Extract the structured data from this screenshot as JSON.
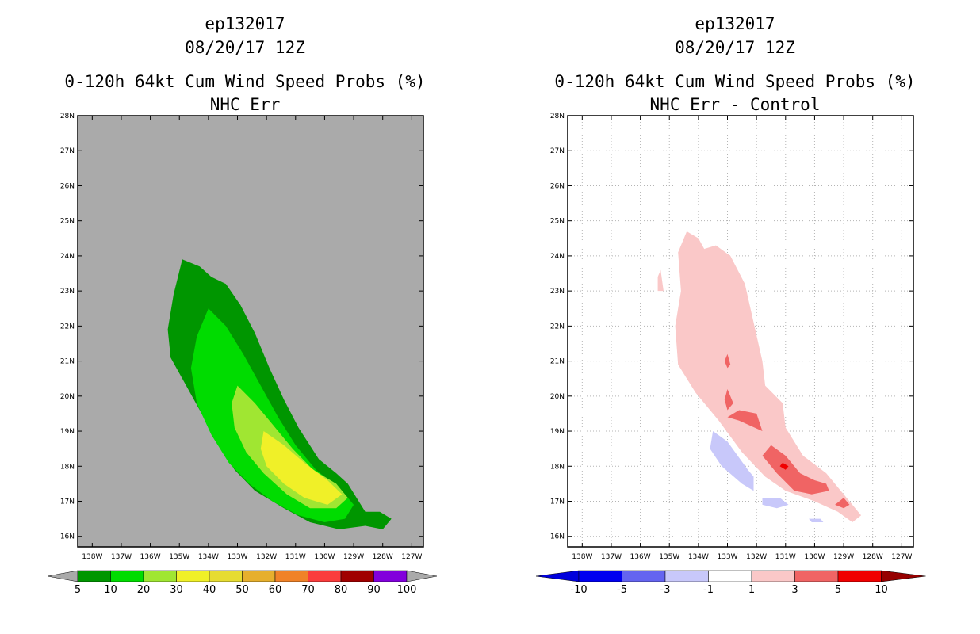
{
  "chart_data": [
    {
      "type": "contour",
      "storm_id": "ep132017",
      "date": "08/20/17 12Z",
      "title": "0-120h 64kt Cum Wind Speed Probs (%)",
      "subtitle": "NHC Err",
      "x_ticks": [
        "138W",
        "137W",
        "136W",
        "135W",
        "134W",
        "133W",
        "132W",
        "131W",
        "130W",
        "129W",
        "128W",
        "127W"
      ],
      "y_ticks": [
        "16N",
        "17N",
        "18N",
        "19N",
        "20N",
        "21N",
        "22N",
        "23N",
        "24N",
        "25N",
        "26N",
        "27N",
        "28N"
      ],
      "xlim": [
        -138.5,
        -126.6
      ],
      "ylim": [
        15.7,
        28
      ],
      "colorbar_labels": [
        "5",
        "10",
        "20",
        "30",
        "40",
        "50",
        "60",
        "70",
        "80",
        "90",
        "100"
      ],
      "colorbar_colors": [
        "#009600",
        "#00dc00",
        "#a0e632",
        "#f0f028",
        "#e6dc32",
        "#e6af2d",
        "#f08228",
        "#fa3c3c",
        "#a00000",
        "#8200dc"
      ],
      "background_color": "#aaaaaa",
      "regions": [
        {
          "level": 5,
          "color": "#009600",
          "points": [
            [
              -134.9,
              23.9
            ],
            [
              -134.3,
              23.7
            ],
            [
              -133.9,
              23.4
            ],
            [
              -133.4,
              23.2
            ],
            [
              -132.9,
              22.6
            ],
            [
              -132.4,
              21.8
            ],
            [
              -131.9,
              20.8
            ],
            [
              -131.4,
              19.9
            ],
            [
              -130.9,
              19.1
            ],
            [
              -130.2,
              18.2
            ],
            [
              -129.6,
              17.8
            ],
            [
              -129.2,
              17.5
            ],
            [
              -128.9,
              17.1
            ],
            [
              -128.6,
              16.7
            ],
            [
              -128.1,
              16.7
            ],
            [
              -127.7,
              16.5
            ],
            [
              -128.0,
              16.2
            ],
            [
              -128.6,
              16.3
            ],
            [
              -129.5,
              16.2
            ],
            [
              -130.5,
              16.4
            ],
            [
              -131.4,
              16.8
            ],
            [
              -132.4,
              17.3
            ],
            [
              -133.1,
              17.9
            ],
            [
              -133.7,
              18.7
            ],
            [
              -134.3,
              19.6
            ],
            [
              -134.9,
              20.5
            ],
            [
              -135.3,
              21.1
            ],
            [
              -135.4,
              21.9
            ],
            [
              -135.2,
              22.9
            ]
          ]
        },
        {
          "level": 10,
          "color": "#00dc00",
          "points": [
            [
              -134.0,
              22.5
            ],
            [
              -133.4,
              22.0
            ],
            [
              -132.8,
              21.2
            ],
            [
              -132.2,
              20.3
            ],
            [
              -131.6,
              19.4
            ],
            [
              -131.0,
              18.6
            ],
            [
              -130.3,
              17.9
            ],
            [
              -129.7,
              17.5
            ],
            [
              -129.3,
              17.2
            ],
            [
              -129.0,
              16.9
            ],
            [
              -129.3,
              16.5
            ],
            [
              -130.0,
              16.4
            ],
            [
              -130.9,
              16.6
            ],
            [
              -131.8,
              17.0
            ],
            [
              -132.6,
              17.5
            ],
            [
              -133.3,
              18.1
            ],
            [
              -133.9,
              18.9
            ],
            [
              -134.4,
              19.8
            ],
            [
              -134.6,
              20.8
            ],
            [
              -134.4,
              21.7
            ]
          ]
        },
        {
          "level": 20,
          "color": "#a0e632",
          "points": [
            [
              -133.0,
              20.3
            ],
            [
              -132.4,
              19.8
            ],
            [
              -131.8,
              19.2
            ],
            [
              -131.1,
              18.5
            ],
            [
              -130.4,
              17.9
            ],
            [
              -129.6,
              17.5
            ],
            [
              -129.2,
              17.1
            ],
            [
              -129.6,
              16.8
            ],
            [
              -130.5,
              16.8
            ],
            [
              -131.3,
              17.2
            ],
            [
              -132.1,
              17.8
            ],
            [
              -132.7,
              18.4
            ],
            [
              -133.1,
              19.1
            ],
            [
              -133.2,
              19.8
            ]
          ]
        },
        {
          "level": 30,
          "color": "#f0f028",
          "points": [
            [
              -132.1,
              19.0
            ],
            [
              -131.4,
              18.6
            ],
            [
              -130.7,
              18.1
            ],
            [
              -129.9,
              17.6
            ],
            [
              -129.4,
              17.2
            ],
            [
              -129.9,
              16.9
            ],
            [
              -130.7,
              17.1
            ],
            [
              -131.4,
              17.5
            ],
            [
              -132.0,
              18.0
            ],
            [
              -132.2,
              18.5
            ]
          ]
        }
      ]
    },
    {
      "type": "contour",
      "storm_id": "ep132017",
      "date": "08/20/17 12Z",
      "title": "0-120h 64kt Cum Wind Speed Probs (%)",
      "subtitle": "NHC Err - Control",
      "x_ticks": [
        "138W",
        "137W",
        "136W",
        "135W",
        "134W",
        "133W",
        "132W",
        "131W",
        "130W",
        "129W",
        "128W",
        "127W"
      ],
      "y_ticks": [
        "16N",
        "17N",
        "18N",
        "19N",
        "20N",
        "21N",
        "22N",
        "23N",
        "24N",
        "25N",
        "26N",
        "27N",
        "28N"
      ],
      "xlim": [
        -138.5,
        -126.6
      ],
      "ylim": [
        15.7,
        28
      ],
      "grid": true,
      "colorbar_labels": [
        "-10",
        "-5",
        "-3",
        "-1",
        "1",
        "3",
        "5",
        "10"
      ],
      "colorbar_colors": [
        "#0000dc",
        "#0000f0",
        "#6464f0",
        "#c8c8fa",
        "#ffffff",
        "#fac8c8",
        "#f06464",
        "#f00000",
        "#960000"
      ],
      "background_color": "#ffffff",
      "regions": [
        {
          "level": 1,
          "color": "#fac8c8",
          "points": [
            [
              -134.4,
              24.7
            ],
            [
              -134.0,
              24.5
            ],
            [
              -133.8,
              24.2
            ],
            [
              -133.4,
              24.3
            ],
            [
              -132.9,
              24.0
            ],
            [
              -132.4,
              23.2
            ],
            [
              -132.1,
              22.1
            ],
            [
              -131.8,
              21.0
            ],
            [
              -131.7,
              20.3
            ],
            [
              -131.1,
              19.8
            ],
            [
              -131.0,
              19.1
            ],
            [
              -130.4,
              18.3
            ],
            [
              -129.6,
              17.8
            ],
            [
              -129.0,
              17.2
            ],
            [
              -128.4,
              16.6
            ],
            [
              -128.7,
              16.4
            ],
            [
              -129.2,
              16.7
            ],
            [
              -130.0,
              17.0
            ],
            [
              -131.0,
              17.3
            ],
            [
              -131.7,
              17.7
            ],
            [
              -132.5,
              18.4
            ],
            [
              -133.3,
              19.3
            ],
            [
              -134.1,
              20.1
            ],
            [
              -134.7,
              20.9
            ],
            [
              -134.8,
              22.0
            ],
            [
              -134.6,
              23.0
            ],
            [
              -134.7,
              24.1
            ]
          ]
        },
        {
          "level": 1,
          "color": "#fac8c8",
          "points": [
            [
              -135.3,
              23.6
            ],
            [
              -135.2,
              23.0
            ],
            [
              -135.4,
              23.0
            ],
            [
              -135.4,
              23.4
            ]
          ]
        },
        {
          "level": 3,
          "color": "#f06464",
          "points": [
            [
              -132.6,
              19.6
            ],
            [
              -132.0,
              19.5
            ],
            [
              -131.8,
              19.0
            ],
            [
              -132.6,
              19.3
            ],
            [
              -133.0,
              19.4
            ]
          ]
        },
        {
          "level": 3,
          "color": "#f06464",
          "points": [
            [
              -133.0,
              20.2
            ],
            [
              -132.8,
              19.8
            ],
            [
              -133.0,
              19.6
            ],
            [
              -133.1,
              19.9
            ]
          ]
        },
        {
          "level": 3,
          "color": "#f06464",
          "points": [
            [
              -133.0,
              21.2
            ],
            [
              -132.9,
              20.9
            ],
            [
              -133.0,
              20.8
            ],
            [
              -133.1,
              21.0
            ]
          ]
        },
        {
          "level": 3,
          "color": "#f06464",
          "points": [
            [
              -131.5,
              18.6
            ],
            [
              -131.0,
              18.3
            ],
            [
              -130.5,
              17.8
            ],
            [
              -130.0,
              17.6
            ],
            [
              -129.6,
              17.5
            ],
            [
              -129.5,
              17.3
            ],
            [
              -130.1,
              17.2
            ],
            [
              -130.7,
              17.3
            ],
            [
              -131.3,
              17.8
            ],
            [
              -131.8,
              18.3
            ]
          ]
        },
        {
          "level": 3,
          "color": "#f06464",
          "points": [
            [
              -129.0,
              17.1
            ],
            [
              -128.8,
              16.9
            ],
            [
              -129.0,
              16.8
            ],
            [
              -129.3,
              16.9
            ]
          ]
        },
        {
          "level": 5,
          "color": "#f00000",
          "points": [
            [
              -131.1,
              18.1
            ],
            [
              -130.9,
              18.0
            ],
            [
              -131.0,
              17.9
            ],
            [
              -131.2,
              18.0
            ]
          ]
        },
        {
          "level": -1,
          "color": "#c8c8fa",
          "points": [
            [
              -133.5,
              19.0
            ],
            [
              -133.0,
              18.7
            ],
            [
              -132.3,
              17.9
            ],
            [
              -132.1,
              17.7
            ],
            [
              -132.1,
              17.3
            ],
            [
              -132.5,
              17.5
            ],
            [
              -133.2,
              18.0
            ],
            [
              -133.6,
              18.5
            ]
          ]
        },
        {
          "level": -1,
          "color": "#c8c8fa",
          "points": [
            [
              -131.8,
              17.1
            ],
            [
              -131.2,
              17.1
            ],
            [
              -130.9,
              16.9
            ],
            [
              -131.3,
              16.8
            ],
            [
              -131.8,
              16.9
            ]
          ]
        },
        {
          "level": -1,
          "color": "#c8c8fa",
          "points": [
            [
              -130.2,
              16.5
            ],
            [
              -129.8,
              16.5
            ],
            [
              -129.7,
              16.4
            ],
            [
              -130.1,
              16.4
            ]
          ]
        }
      ]
    }
  ]
}
